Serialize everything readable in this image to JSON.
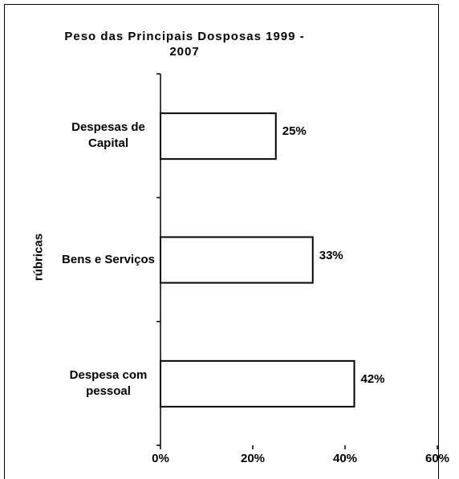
{
  "chart_data": {
    "type": "bar",
    "orientation": "horizontal",
    "title": "Peso das Principais Dosposas 1999 - 2007",
    "y_label": "rúbricas",
    "categories": [
      "Despesas de Capital",
      "Bens e Serviços",
      "Despesa com pessoal"
    ],
    "values": [
      25,
      33,
      42
    ],
    "value_labels": [
      "25%",
      "33%",
      "42%"
    ],
    "color": "#ffffff",
    "xlim": [
      0,
      60
    ],
    "xticks": [
      {
        "value": 0,
        "label": "0%"
      },
      {
        "value": 20,
        "label": "20%"
      },
      {
        "value": 40,
        "label": "40%"
      },
      {
        "value": 60,
        "label": "60%"
      }
    ],
    "grid": false
  }
}
